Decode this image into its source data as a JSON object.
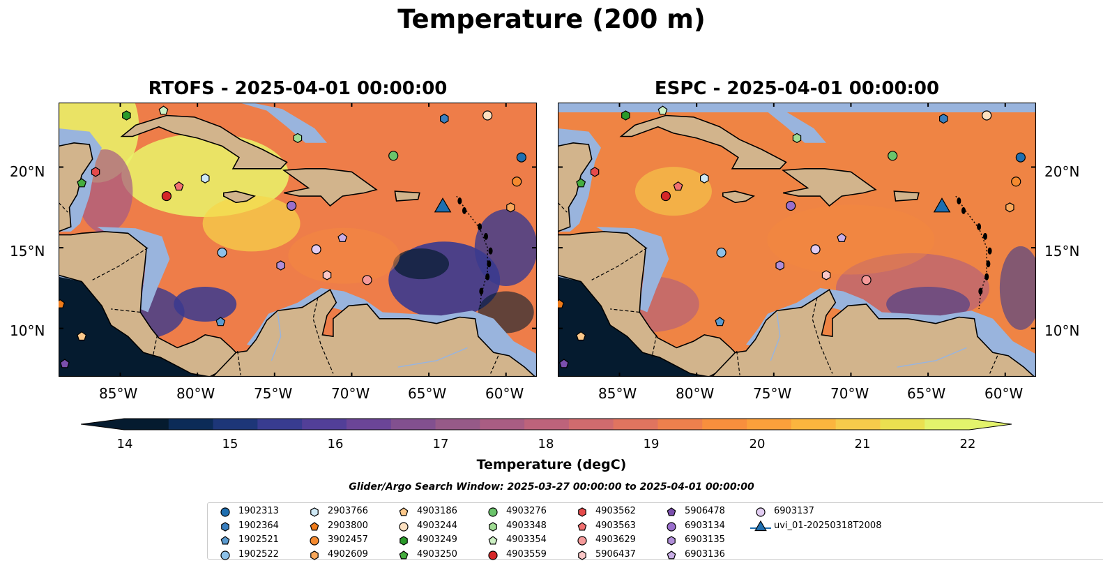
{
  "title": "Temperature (200 m)",
  "panels": [
    {
      "title": "RTOFS - 2025-04-01 00:00:00"
    },
    {
      "title": "ESPC - 2025-04-01 00:00:00"
    }
  ],
  "lat_labels": [
    "20°N",
    "15°N",
    "10°N"
  ],
  "lon_labels": [
    "85°W",
    "80°W",
    "75°W",
    "70°W",
    "65°W",
    "60°W"
  ],
  "colorbar": {
    "label": "Temperature (degC)",
    "ticks": [
      "14",
      "15",
      "16",
      "17",
      "18",
      "19",
      "20",
      "21",
      "22"
    ],
    "colors": [
      "#051b2f",
      "#0c2b57",
      "#1d3678",
      "#383c90",
      "#523f98",
      "#6b4597",
      "#82508f",
      "#965a88",
      "#a95d83",
      "#bd637b",
      "#d06b6e",
      "#e0745f",
      "#ee804d",
      "#f88f3d",
      "#fba03b",
      "#fbb53e",
      "#f6cb4b",
      "#eae050",
      "#e3f36c"
    ],
    "extend": "both"
  },
  "search_window": "Glider/Argo Search Window: 2025-03-27 00:00:00 to 2025-04-01 00:00:00",
  "map": {
    "extent": {
      "lon": [
        -89,
        -58
      ],
      "lat": [
        7,
        24
      ]
    },
    "land_color": "#d2b48c",
    "shelf_color": "#99b4dd",
    "colors": {
      "cool": "#3a3a8f",
      "mid": "#a55a86",
      "warm": "#f48a3f",
      "hot": "#f6d54a",
      "yellow": "#e9f56a",
      "deep": "#051b2f"
    },
    "markers": [
      {
        "id": "1902313",
        "lon": -59.0,
        "lat": 20.6,
        "shape": "circle",
        "color": "#1f6fb0"
      },
      {
        "id": "1902364",
        "lon": -64.0,
        "lat": 23.0,
        "shape": "hexagon",
        "color": "#3a7fbf"
      },
      {
        "id": "1902521",
        "lon": -78.5,
        "lat": 10.4,
        "shape": "pentagon",
        "color": "#5b9bd0"
      },
      {
        "id": "1902522",
        "lon": -78.4,
        "lat": 14.7,
        "shape": "circle",
        "color": "#8dc1e8"
      },
      {
        "id": "2903766",
        "lon": -79.5,
        "lat": 19.3,
        "shape": "hexagon",
        "color": "#cfe9f6"
      },
      {
        "id": "2903800",
        "lon": -88.9,
        "lat": 11.5,
        "shape": "pentagon",
        "color": "#ef7b1a"
      },
      {
        "id": "3902457",
        "lon": -59.3,
        "lat": 19.1,
        "shape": "circle",
        "color": "#f58a2f"
      },
      {
        "id": "4902609",
        "lon": -59.7,
        "lat": 17.5,
        "shape": "hexagon",
        "color": "#f9a85b"
      },
      {
        "id": "4903186",
        "lon": -87.5,
        "lat": 9.5,
        "shape": "pentagon",
        "color": "#fcc88a"
      },
      {
        "id": "4903244",
        "lon": -61.2,
        "lat": 23.2,
        "shape": "circle",
        "color": "#fde0c0"
      },
      {
        "id": "4903249",
        "lon": -84.6,
        "lat": 23.2,
        "shape": "hexagon",
        "color": "#2a9a2a"
      },
      {
        "id": "4903250",
        "lon": -87.5,
        "lat": 19.0,
        "shape": "pentagon",
        "color": "#45ad3e"
      },
      {
        "id": "4903276",
        "lon": -67.3,
        "lat": 20.7,
        "shape": "circle",
        "color": "#6bc46b"
      },
      {
        "id": "4903348",
        "lon": -73.5,
        "lat": 21.8,
        "shape": "hexagon",
        "color": "#9fdc93"
      },
      {
        "id": "4903354",
        "lon": -82.2,
        "lat": 23.5,
        "shape": "pentagon",
        "color": "#ccf0c3"
      },
      {
        "id": "4903559",
        "lon": -82.0,
        "lat": 18.2,
        "shape": "circle",
        "color": "#d62728"
      },
      {
        "id": "4903562",
        "lon": -86.6,
        "lat": 19.7,
        "shape": "hexagon",
        "color": "#e54b4b"
      },
      {
        "id": "4903563",
        "lon": -81.2,
        "lat": 18.8,
        "shape": "pentagon",
        "color": "#f27070"
      },
      {
        "id": "4903629",
        "lon": -69.0,
        "lat": 13.0,
        "shape": "circle",
        "color": "#f59a9a"
      },
      {
        "id": "5906437",
        "lon": -71.6,
        "lat": 13.3,
        "shape": "hexagon",
        "color": "#fbc7c7"
      },
      {
        "id": "5906478",
        "lon": -88.6,
        "lat": 7.8,
        "shape": "pentagon",
        "color": "#7b4fad"
      },
      {
        "id": "6903134",
        "lon": -73.9,
        "lat": 17.6,
        "shape": "circle",
        "color": "#9a6fcc"
      },
      {
        "id": "6903135",
        "lon": -74.6,
        "lat": 13.9,
        "shape": "hexagon",
        "color": "#b08ed8"
      },
      {
        "id": "6903136",
        "lon": -70.6,
        "lat": 15.6,
        "shape": "pentagon",
        "color": "#c9aee6"
      },
      {
        "id": "6903137",
        "lon": -72.3,
        "lat": 14.9,
        "shape": "circle",
        "color": "#e2cdf2"
      },
      {
        "id": "uvi_01-20250318T2008",
        "lon": -64.1,
        "lat": 17.5,
        "shape": "triangle",
        "color": "#1f6fb0"
      }
    ]
  }
}
